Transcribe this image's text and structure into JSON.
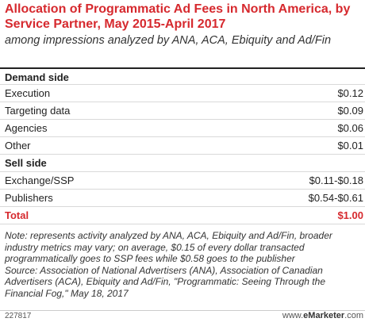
{
  "title": "Allocation of Programmatic Ad Fees in North America, by Service Partner, May 2015-April 2017",
  "subtitle": "among impressions analyzed by ANA, ACA, Ebiquity and Ad/Fin",
  "chart_data": {
    "type": "table",
    "sections": [
      {
        "name": "Demand side",
        "rows": [
          {
            "label": "Execution",
            "value": "$0.12"
          },
          {
            "label": "Targeting data",
            "value": "$0.09"
          },
          {
            "label": "Agencies",
            "value": "$0.06"
          },
          {
            "label": "Other",
            "value": "$0.01"
          }
        ]
      },
      {
        "name": "Sell side",
        "rows": [
          {
            "label": "Exchange/SSP",
            "value": "$0.11-$0.18"
          },
          {
            "label": "Publishers",
            "value": "$0.54-$0.61"
          }
        ]
      }
    ],
    "total": {
      "label": "Total",
      "value": "$1.00"
    },
    "highlight_color": "#d6292e"
  },
  "note": "Note: represents activity analyzed by ANA, ACA, Ebiquity and Ad/Fin, broader industry metrics may vary; on average, $0.15 of every dollar transacted programmatically goes to SSP fees while $0.58 goes to the publisher",
  "source": "Source: Association of National Advertisers (ANA), Association of Canadian Advertisers (ACA), Ebiquity and Ad/Fin, \"Programmatic: Seeing Through the Financial Fog,\" May 18, 2017",
  "footer": {
    "id": "227817",
    "brand_prefix": "www.",
    "brand_name": "eMarketer",
    "brand_suffix": ".com"
  }
}
